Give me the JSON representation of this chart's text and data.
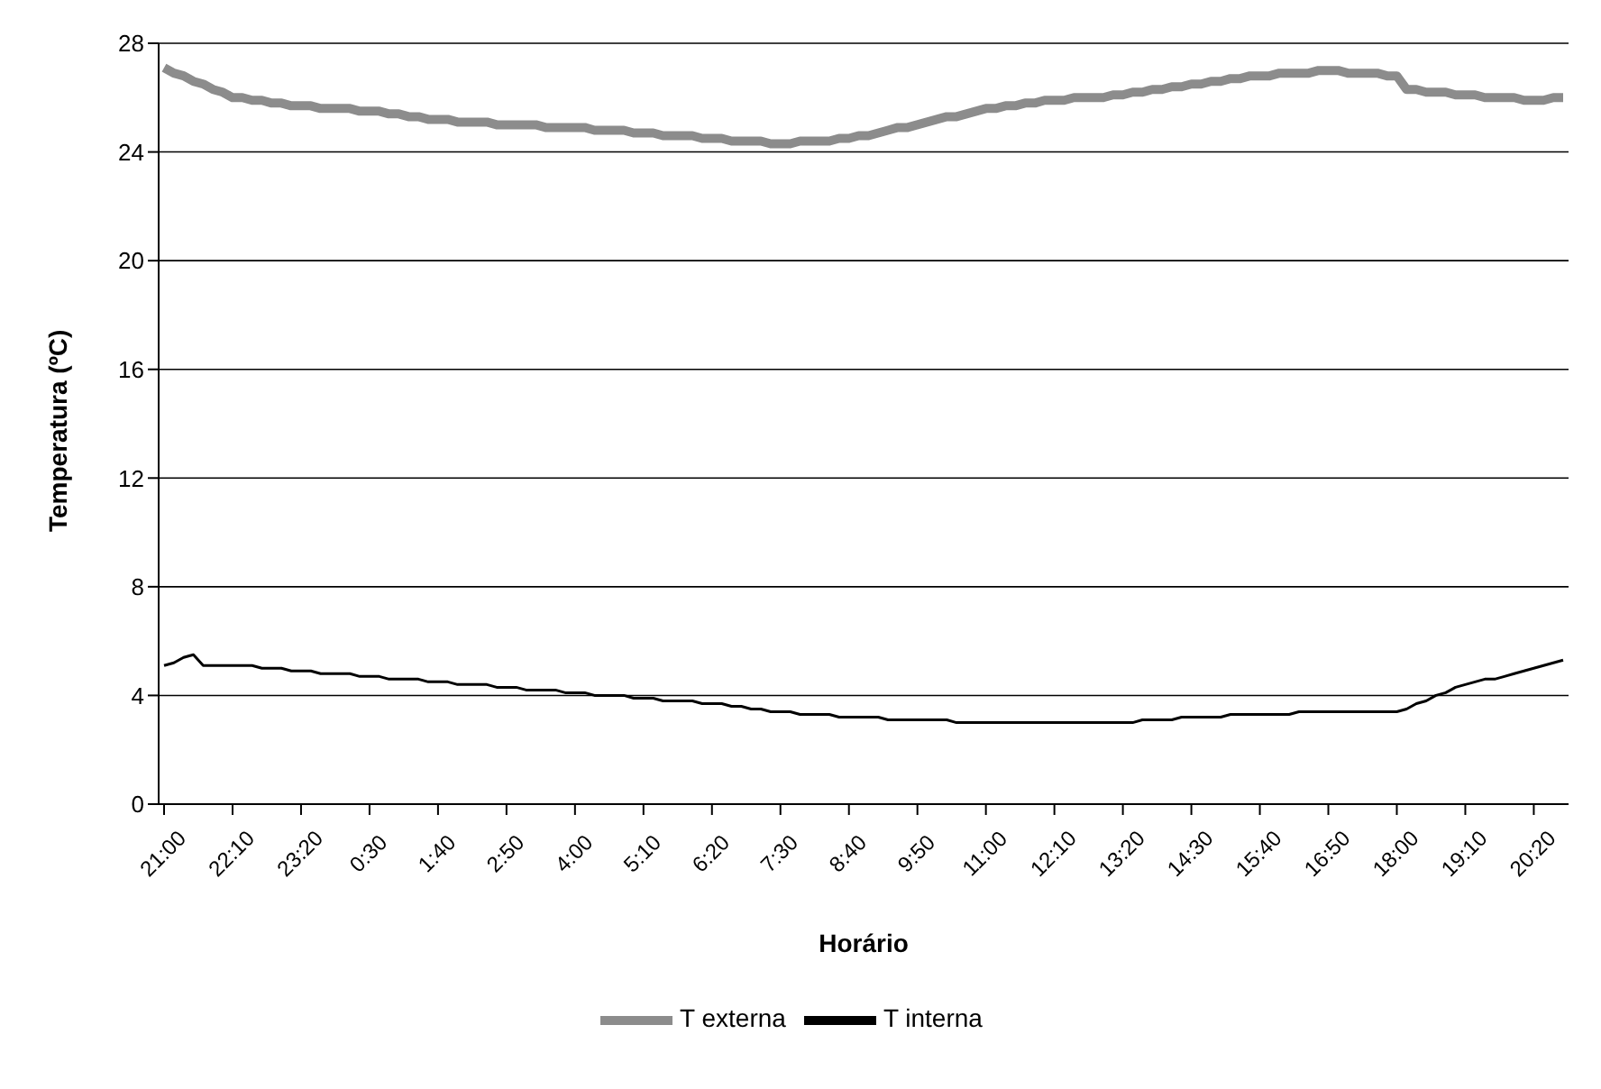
{
  "chart_data": {
    "type": "line",
    "xlabel": "Horário",
    "ylabel": "Temperatura (ºC)",
    "categories": [
      "21:00",
      null,
      null,
      null,
      null,
      null,
      null,
      "22:10",
      null,
      null,
      null,
      null,
      null,
      null,
      "23:20",
      null,
      null,
      null,
      null,
      null,
      null,
      "0:30",
      null,
      null,
      null,
      null,
      null,
      null,
      "1:40",
      null,
      null,
      null,
      null,
      null,
      null,
      "2:50",
      null,
      null,
      null,
      null,
      null,
      null,
      "4:00",
      null,
      null,
      null,
      null,
      null,
      null,
      "5:10",
      null,
      null,
      null,
      null,
      null,
      null,
      "6:20",
      null,
      null,
      null,
      null,
      null,
      null,
      "7:30",
      null,
      null,
      null,
      null,
      null,
      null,
      "8:40",
      null,
      null,
      null,
      null,
      null,
      null,
      "9:50",
      null,
      null,
      null,
      null,
      null,
      null,
      "11:00",
      null,
      null,
      null,
      null,
      null,
      null,
      "12:10",
      null,
      null,
      null,
      null,
      null,
      null,
      "13:20",
      null,
      null,
      null,
      null,
      null,
      null,
      "14:30",
      null,
      null,
      null,
      null,
      null,
      null,
      "15:40",
      null,
      null,
      null,
      null,
      null,
      null,
      "16:50",
      null,
      null,
      null,
      null,
      null,
      null,
      "18:00",
      null,
      null,
      null,
      null,
      null,
      null,
      "19:10",
      null,
      null,
      null,
      null,
      null,
      null,
      "20:20",
      null,
      null,
      null
    ],
    "ylim": [
      0,
      28
    ],
    "yticks": [
      0,
      4,
      8,
      12,
      16,
      20,
      24,
      28
    ],
    "grid": "y",
    "legend": "bottom",
    "marker": "none",
    "line_style": "solid",
    "series": [
      {
        "name": "T externa",
        "color": "#8c8c8c",
        "values": [
          27.1,
          26.9,
          26.8,
          26.6,
          26.5,
          26.3,
          26.2,
          26.0,
          26.0,
          25.9,
          25.9,
          25.8,
          25.8,
          25.7,
          25.7,
          25.7,
          25.6,
          25.6,
          25.6,
          25.6,
          25.5,
          25.5,
          25.5,
          25.4,
          25.4,
          25.3,
          25.3,
          25.2,
          25.2,
          25.2,
          25.1,
          25.1,
          25.1,
          25.1,
          25.0,
          25.0,
          25.0,
          25.0,
          25.0,
          24.9,
          24.9,
          24.9,
          24.9,
          24.9,
          24.8,
          24.8,
          24.8,
          24.8,
          24.7,
          24.7,
          24.7,
          24.6,
          24.6,
          24.6,
          24.6,
          24.5,
          24.5,
          24.5,
          24.4,
          24.4,
          24.4,
          24.4,
          24.3,
          24.3,
          24.3,
          24.4,
          24.4,
          24.4,
          24.4,
          24.5,
          24.5,
          24.6,
          24.6,
          24.7,
          24.8,
          24.9,
          24.9,
          25.0,
          25.1,
          25.2,
          25.3,
          25.3,
          25.4,
          25.5,
          25.6,
          25.6,
          25.7,
          25.7,
          25.8,
          25.8,
          25.9,
          25.9,
          25.9,
          26.0,
          26.0,
          26.0,
          26.0,
          26.1,
          26.1,
          26.2,
          26.2,
          26.3,
          26.3,
          26.4,
          26.4,
          26.5,
          26.5,
          26.6,
          26.6,
          26.7,
          26.7,
          26.8,
          26.8,
          26.8,
          26.9,
          26.9,
          26.9,
          26.9,
          27.0,
          27.0,
          27.0,
          26.9,
          26.9,
          26.9,
          26.9,
          26.8,
          26.8,
          26.3,
          26.3,
          26.2,
          26.2,
          26.2,
          26.1,
          26.1,
          26.1,
          26.0,
          26.0,
          26.0,
          26.0,
          25.9,
          25.9,
          25.9,
          26.0,
          26.0
        ]
      },
      {
        "name": "T interna",
        "color": "#000000",
        "values": [
          5.1,
          5.2,
          5.4,
          5.5,
          5.1,
          5.1,
          5.1,
          5.1,
          5.1,
          5.1,
          5.0,
          5.0,
          5.0,
          4.9,
          4.9,
          4.9,
          4.8,
          4.8,
          4.8,
          4.8,
          4.7,
          4.7,
          4.7,
          4.6,
          4.6,
          4.6,
          4.6,
          4.5,
          4.5,
          4.5,
          4.4,
          4.4,
          4.4,
          4.4,
          4.3,
          4.3,
          4.3,
          4.2,
          4.2,
          4.2,
          4.2,
          4.1,
          4.1,
          4.1,
          4.0,
          4.0,
          4.0,
          4.0,
          3.9,
          3.9,
          3.9,
          3.8,
          3.8,
          3.8,
          3.8,
          3.7,
          3.7,
          3.7,
          3.6,
          3.6,
          3.5,
          3.5,
          3.4,
          3.4,
          3.4,
          3.3,
          3.3,
          3.3,
          3.3,
          3.2,
          3.2,
          3.2,
          3.2,
          3.2,
          3.1,
          3.1,
          3.1,
          3.1,
          3.1,
          3.1,
          3.1,
          3.0,
          3.0,
          3.0,
          3.0,
          3.0,
          3.0,
          3.0,
          3.0,
          3.0,
          3.0,
          3.0,
          3.0,
          3.0,
          3.0,
          3.0,
          3.0,
          3.0,
          3.0,
          3.0,
          3.1,
          3.1,
          3.1,
          3.1,
          3.2,
          3.2,
          3.2,
          3.2,
          3.2,
          3.3,
          3.3,
          3.3,
          3.3,
          3.3,
          3.3,
          3.3,
          3.4,
          3.4,
          3.4,
          3.4,
          3.4,
          3.4,
          3.4,
          3.4,
          3.4,
          3.4,
          3.4,
          3.5,
          3.7,
          3.8,
          4.0,
          4.1,
          4.3,
          4.4,
          4.5,
          4.6,
          4.6,
          4.7,
          4.8,
          4.9,
          5.0,
          5.1,
          5.2,
          5.3
        ]
      }
    ]
  }
}
